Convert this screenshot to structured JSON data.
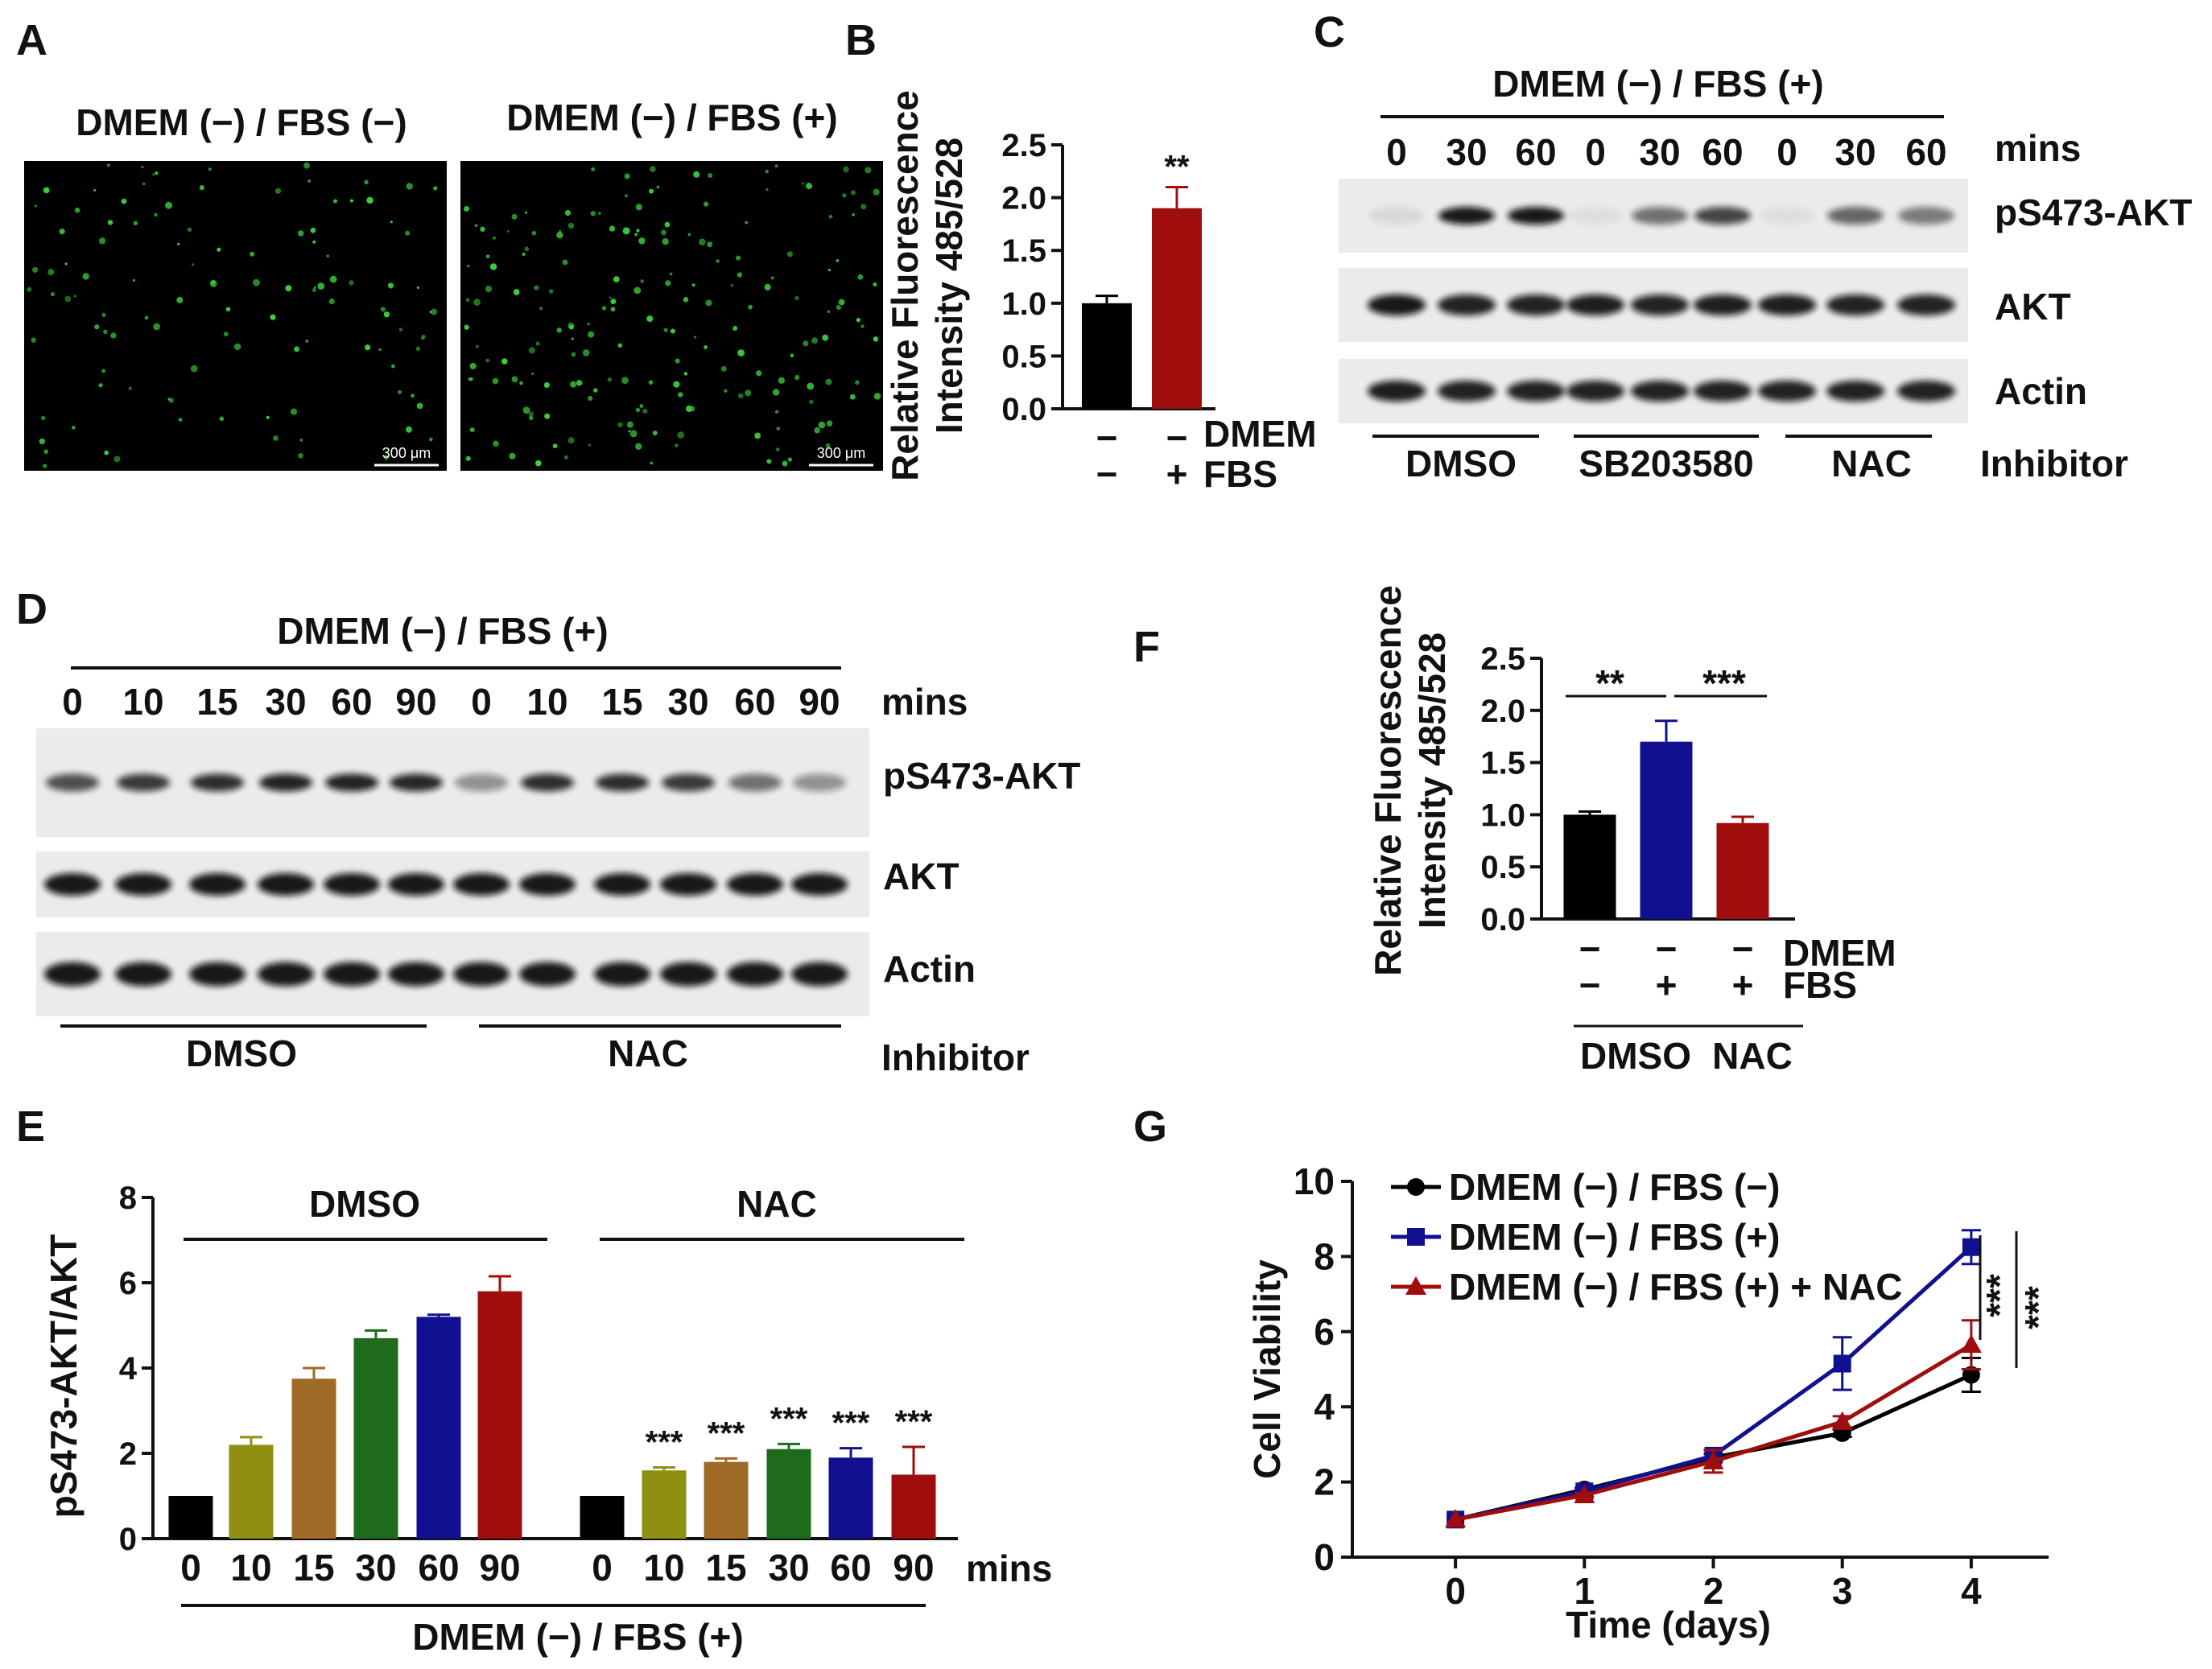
{
  "panels": {
    "A": {
      "letter": "A",
      "left_title": "DMEM (−) / FBS (−)",
      "right_title": "DMEM (−) / FBS (+)",
      "scale_left": "300 μm",
      "scale_right": "300 μm"
    },
    "B": {
      "letter": "B",
      "ylabel_1": "Relative Fluorescence",
      "ylabel_2": "Intensity 485/528",
      "sig": "**",
      "row1_label": "DMEM",
      "row2_label": "FBS",
      "row1_signs": [
        "−",
        "−"
      ],
      "row2_signs": [
        "−",
        "+"
      ]
    },
    "C": {
      "letter": "C",
      "condition": "DMEM (−) / FBS (+)",
      "times": [
        "0",
        "30",
        "60",
        "0",
        "30",
        "60",
        "0",
        "30",
        "60"
      ],
      "time_unit": "mins",
      "rows": [
        "pS473-AKT",
        "AKT",
        "Actin"
      ],
      "groups": [
        "DMSO",
        "SB203580",
        "NAC"
      ],
      "group_label": "Inhibitor"
    },
    "D": {
      "letter": "D",
      "condition": "DMEM (−) / FBS (+)",
      "times": [
        "0",
        "10",
        "15",
        "30",
        "60",
        "90",
        "0",
        "10",
        "15",
        "30",
        "60",
        "90"
      ],
      "time_unit": "mins",
      "rows": [
        "pS473-AKT",
        "AKT",
        "Actin"
      ],
      "groups": [
        "DMSO",
        "NAC"
      ],
      "group_label": "Inhibitor"
    },
    "E": {
      "letter": "E",
      "ylabel": "pS473-AKT/AKT",
      "group_dmso": "DMSO",
      "group_nac": "NAC",
      "time_unit": "mins",
      "condition": "DMEM (−) / FBS (+)"
    },
    "F": {
      "letter": "F",
      "ylabel_1": "Relative Fluorescence",
      "ylabel_2": "Intensity 485/528",
      "sig_1": "**",
      "sig_2": "***",
      "row1_label": "DMEM",
      "row2_label": "FBS",
      "row1_signs": [
        "−",
        "−",
        "−"
      ],
      "row2_signs": [
        "−",
        "+",
        "+"
      ],
      "group_dmso": "DMSO",
      "group_nac": "NAC"
    },
    "G": {
      "letter": "G",
      "sig_1": "***",
      "sig_2": "***"
    }
  },
  "colors": {
    "black": "#000000",
    "olive": "#8f8f12",
    "brown": "#9e6a26",
    "green": "#1d6b1b",
    "blue": "#101090",
    "red": "#a00d0d"
  },
  "chart_data": [
    {
      "id": "B",
      "type": "bar",
      "categories": [
        "DMEM (−) / FBS (−)",
        "DMEM (−) / FBS (+)"
      ],
      "values": [
        1.0,
        1.9
      ],
      "errors": [
        0.07,
        0.2
      ],
      "colors": [
        "#000000",
        "#a00d0d"
      ],
      "ylim": [
        0,
        2.5
      ],
      "yticks": [
        "0.0",
        "0.5",
        "1.0",
        "1.5",
        "2.0",
        "2.5"
      ]
    },
    {
      "id": "E",
      "type": "bar",
      "categories": [
        "0",
        "10",
        "15",
        "30",
        "60",
        "90",
        "0",
        "10",
        "15",
        "30",
        "60",
        "90"
      ],
      "values": [
        1.0,
        2.2,
        3.75,
        4.7,
        5.2,
        5.8,
        1.0,
        1.6,
        1.8,
        2.1,
        1.9,
        1.5
      ],
      "errors": [
        0,
        0.18,
        0.25,
        0.18,
        0.05,
        0.35,
        0,
        0.07,
        0.08,
        0.12,
        0.22,
        0.65
      ],
      "colors": [
        "#000000",
        "#8f8f12",
        "#9e6a26",
        "#1d6b1b",
        "#101090",
        "#a00d0d",
        "#000000",
        "#8f8f12",
        "#9e6a26",
        "#1d6b1b",
        "#101090",
        "#a00d0d"
      ],
      "significance": [
        "",
        "",
        "",
        "",
        "",
        "",
        "",
        "***",
        "***",
        "***",
        "***",
        "***"
      ],
      "ylabel": "pS473-AKT/AKT",
      "ylim": [
        0,
        8
      ],
      "yticks": [
        "0",
        "2",
        "4",
        "6",
        "8"
      ]
    },
    {
      "id": "F",
      "type": "bar",
      "categories": [
        "DMEM (−) / FBS (−)",
        "DMEM (−) / FBS (+)",
        "DMEM (−) / FBS (+) + NAC"
      ],
      "values": [
        1.0,
        1.7,
        0.92
      ],
      "errors": [
        0.03,
        0.2,
        0.06
      ],
      "colors": [
        "#000000",
        "#101090",
        "#a00d0d"
      ],
      "ylim": [
        0,
        2.5
      ],
      "yticks": [
        "0.0",
        "0.5",
        "1.0",
        "1.5",
        "2.0",
        "2.5"
      ]
    },
    {
      "id": "G",
      "type": "line",
      "title": "",
      "xlabel": "Time  (days)",
      "ylabel": "Cell  Viability",
      "x": [
        0,
        1,
        2,
        3,
        4
      ],
      "xticks": [
        "0",
        "1",
        "2",
        "3",
        "4"
      ],
      "yticks": [
        "0",
        "2",
        "4",
        "6",
        "8",
        "10"
      ],
      "xlim": [
        -0.8,
        4.6
      ],
      "ylim": [
        0,
        10
      ],
      "series": [
        {
          "name": "DMEM (−) / FBS (−)",
          "marker": "circle",
          "color": "#000000",
          "values": [
            1.0,
            1.8,
            2.65,
            3.3,
            4.85
          ],
          "errors": [
            0,
            0.05,
            0.1,
            0.1,
            0.45
          ]
        },
        {
          "name": "DMEM (−) / FBS (+)",
          "marker": "square",
          "color": "#101090",
          "values": [
            1.0,
            1.75,
            2.7,
            5.15,
            8.25
          ],
          "errors": [
            0,
            0.05,
            0.15,
            0.7,
            0.45
          ]
        },
        {
          "name": "DMEM (−) / FBS (+) + NAC",
          "marker": "triangle",
          "color": "#a00d0d",
          "values": [
            1.0,
            1.65,
            2.55,
            3.6,
            5.65
          ],
          "errors": [
            0,
            0.05,
            0.3,
            0.15,
            0.65
          ]
        }
      ],
      "legend": "top-left"
    }
  ]
}
